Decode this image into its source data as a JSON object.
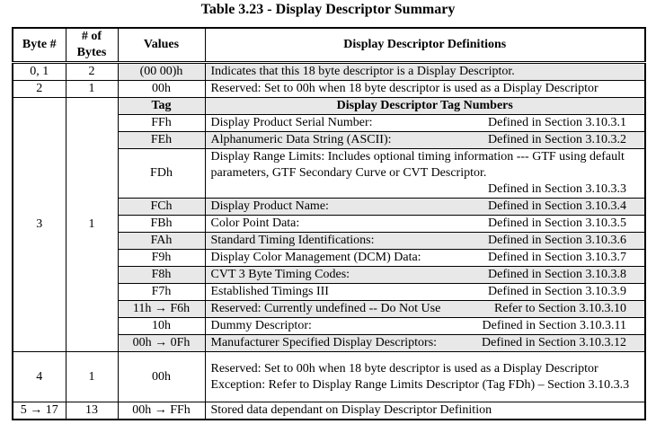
{
  "header": {
    "title": "Table 3.23 - Display Descriptor Summary"
  },
  "table": {
    "columns": [
      "Byte #",
      "# of Bytes",
      "Values",
      "Display Descriptor Definitions"
    ],
    "rows_before": [
      {
        "byte": "0, 1",
        "bytes": "2",
        "value": "(00 00)h",
        "definition": "Indicates that this 18 byte descriptor is a Display Descriptor."
      },
      {
        "byte": "2",
        "bytes": "1",
        "value": "00h",
        "definition": "Reserved: Set to 00h when 18 byte descriptor is used as a Display Descriptor"
      }
    ],
    "tag_group": {
      "byte": "3",
      "bytes": "1",
      "tag": "Tag",
      "title": "Display Descriptor Tag Numbers",
      "rows": [
        {
          "value": "FFh",
          "definition": "Display Product Serial Number:",
          "ref": "Defined in Section 3.10.3.1"
        },
        {
          "value": "FEh",
          "definition": "Alphanumeric Data String (ASCII):",
          "ref": "Defined in Section 3.10.3.2"
        },
        {
          "value": "FDh",
          "definition": "Display Range Limits: Includes optional timing information --- GTF using default parameters, GTF Secondary Curve or CVT Descriptor.",
          "ref": "Defined in Section 3.10.3.3"
        },
        {
          "value": "FCh",
          "definition": "Display Product Name:",
          "ref": "Defined in Section 3.10.3.4"
        },
        {
          "value": "FBh",
          "definition": "Color Point Data:",
          "ref": "Defined in Section 3.10.3.5"
        },
        {
          "value": "FAh",
          "definition": "Standard Timing Identifications:",
          "ref": "Defined in Section 3.10.3.6"
        },
        {
          "value": "F9h",
          "definition": "Display Color Management (DCM) Data:",
          "ref": "Defined in Section 3.10.3.7"
        },
        {
          "value": "F8h",
          "definition": "CVT 3 Byte Timing Codes:",
          "ref": "Defined in Section 3.10.3.8"
        },
        {
          "value": "F7h",
          "definition": "Established Timings III",
          "ref": "Defined in Section 3.10.3.9"
        },
        {
          "value": "11h → F6h",
          "definition": "Reserved: Currently undefined -- Do Not Use",
          "ref": "Refer to Section 3.10.3.10"
        },
        {
          "value": "10h",
          "definition": "Dummy Descriptor:",
          "ref": "Defined in Section 3.10.3.11"
        },
        {
          "value": "00h → 0Fh",
          "definition": "Manufacturer Specified Display Descriptors:",
          "ref": "Defined in Section 3.10.3.12"
        }
      ]
    },
    "rows_after": [
      {
        "byte": "4",
        "bytes": "1",
        "value": "00h",
        "definition": "Reserved: Set to 00h when 18 byte descriptor is used as a Display Descriptor Exception: Refer to Display Range Limits Descriptor (Tag FDh) – Section 3.10.3.3"
      },
      {
        "byte": "5 → 17",
        "bytes": "13",
        "value": "00h → FFh",
        "definition": "Stored data dependant on Display Descriptor Definition"
      }
    ]
  }
}
